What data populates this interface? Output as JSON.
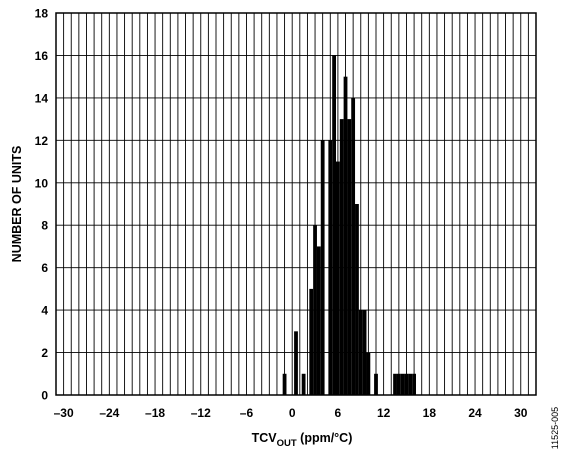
{
  "chart_data": {
    "type": "bar",
    "title": "",
    "xlabel": {
      "main": "TCV",
      "subscript": "OUT",
      "suffix": " (ppm/°C)"
    },
    "ylabel": "NUMBER OF UNITS",
    "xlim": [
      -31,
      32
    ],
    "ylim": [
      0,
      18
    ],
    "x_ticks": [
      -30,
      -24,
      -18,
      -12,
      -6,
      0,
      6,
      12,
      18,
      24,
      30
    ],
    "x_tick_labels": [
      "–30",
      "–24",
      "–18",
      "–12",
      "–6",
      "0",
      "6",
      "12",
      "18",
      "24",
      "30"
    ],
    "y_ticks": [
      0,
      2,
      4,
      6,
      8,
      10,
      12,
      14,
      16,
      18
    ],
    "y_tick_labels": [
      "0",
      "2",
      "4",
      "6",
      "8",
      "10",
      "12",
      "14",
      "16",
      "18"
    ],
    "grid": true,
    "x": [
      -1,
      0.5,
      1.5,
      2.5,
      3,
      3.5,
      4,
      5,
      5.5,
      6,
      6.5,
      7,
      7.5,
      8,
      8.5,
      9,
      9.5,
      10,
      11,
      13.5,
      14,
      14.5,
      15,
      15.5,
      16
    ],
    "values": [
      1,
      3,
      1,
      5,
      8,
      7,
      12,
      12,
      16,
      11,
      13,
      15,
      13,
      14,
      9,
      4,
      4,
      2,
      1,
      1,
      1,
      1,
      1,
      1,
      1
    ],
    "bar_color": "#000000",
    "grid_color": "#000000"
  },
  "figure_id": "11525-005"
}
